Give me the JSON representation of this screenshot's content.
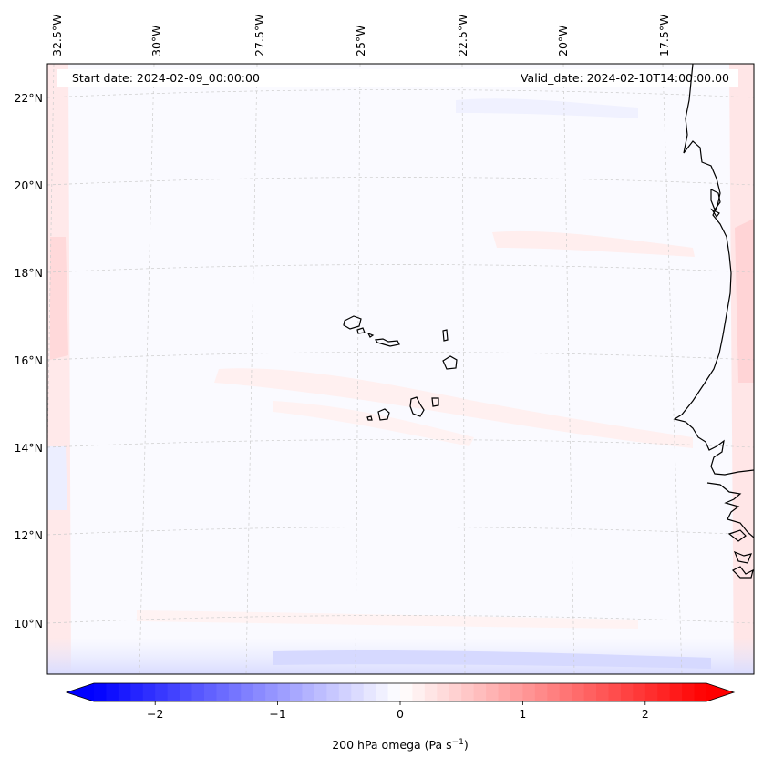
{
  "header": {
    "start_date": "Start date: 2024-02-09_00:00:00",
    "valid_date": "Valid_date: 2024-02-10T14:00:00.00"
  },
  "map": {
    "region": "Cabo Verde and West African coast",
    "longitude_labels": [
      "32.5°W",
      "30°W",
      "27.5°W",
      "25°W",
      "22.5°W",
      "20°W",
      "17.5°W"
    ],
    "latitude_labels": [
      "22°N",
      "20°N",
      "18°N",
      "16°N",
      "14°N",
      "12°N",
      "10°N"
    ],
    "gridlines": true
  },
  "colorbar": {
    "label_prefix": "200 hPa omega (Pa s",
    "label_exponent": "−1",
    "label_suffix": ")",
    "tick_labels": [
      "−2",
      "−1",
      "0",
      "1",
      "2"
    ],
    "tick_values": [
      -2,
      -1,
      0,
      1,
      2
    ],
    "range": [
      -2.5,
      2.5
    ],
    "levels": 50,
    "low_color": "#0000ff",
    "mid_color": "#ffffff",
    "high_color": "#ff0000",
    "extend": "both"
  },
  "colors": {
    "coastline": "#000000",
    "gridline": "#cccccc"
  }
}
